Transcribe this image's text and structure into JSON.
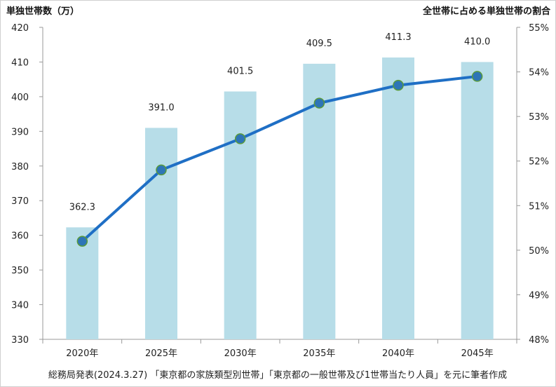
{
  "chart_data": {
    "type": "bar+line",
    "left_axis_title": "単独世帯数（万）",
    "right_axis_title": "全世帯に占める単独世帯の割合",
    "categories": [
      "2020年",
      "2025年",
      "2030年",
      "2035年",
      "2040年",
      "2045年"
    ],
    "bar_series": {
      "values": [
        362.3,
        391.0,
        401.5,
        409.5,
        411.3,
        410.0
      ],
      "labels": [
        "362.3",
        "391.0",
        "401.5",
        "409.5",
        "411.3",
        "410.0"
      ],
      "color": "#b7dde8",
      "axis": "left"
    },
    "line_series": {
      "values": [
        50.2,
        51.8,
        52.5,
        53.3,
        53.7,
        53.9
      ],
      "color": "#1f6fc5",
      "marker_color": "#2e75b6",
      "axis": "right"
    },
    "left_ylim": [
      330,
      420
    ],
    "left_ticks": [
      "330",
      "340",
      "350",
      "360",
      "370",
      "380",
      "390",
      "400",
      "410",
      "420"
    ],
    "right_ylim": [
      48,
      55
    ],
    "right_ticks": [
      "48%",
      "49%",
      "50%",
      "51%",
      "52%",
      "53%",
      "54%",
      "55%"
    ],
    "grid": false
  },
  "source_note": "総務局発表(2024.3.27) 「東京都の家族類型別世帯」「東京都の一般世帯及び1世帯当たり人員」を元に筆者作成"
}
